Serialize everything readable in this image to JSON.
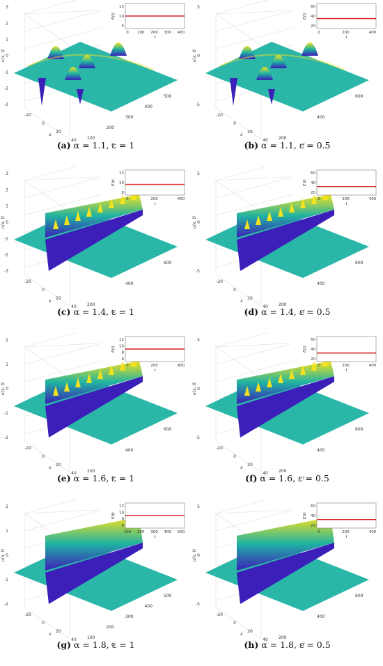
{
  "panels": [
    {
      "id": "a",
      "caption": {
        "label": "(a)",
        "text": "α = 1.1, ε = 1"
      },
      "surface_ticks": {
        "z": [
          "3",
          "2",
          "1",
          "0",
          "-1",
          "-2",
          "-3"
        ],
        "x": [
          "-20",
          "0",
          "20",
          "40"
        ],
        "t": [
          "100",
          "200",
          "300",
          "400",
          "500"
        ],
        "xlabel": "x",
        "tlabel": "t",
        "zlabel": "u(x, t)"
      },
      "inset": {
        "ylabel": "E(t)",
        "xlabel": "t",
        "yticks": [
          "15",
          "10",
          "5"
        ],
        "xticks": [
          "0",
          "100",
          "200",
          "300",
          "400"
        ],
        "E_level": 10,
        "ylim": [
          5,
          15
        ]
      },
      "style": "peaks",
      "zmax": 3
    },
    {
      "id": "b",
      "caption": {
        "label": "(b)",
        "text": "α = 1.1, ε = 0.5"
      },
      "surface_ticks": {
        "z": [
          "5",
          "0",
          "-5"
        ],
        "x": [
          "-20",
          "0",
          "20",
          "40"
        ],
        "t": [
          "200",
          "400",
          "600"
        ],
        "xlabel": "x",
        "tlabel": "t",
        "zlabel": "u(x, t)"
      },
      "inset": {
        "ylabel": "E(t)",
        "xlabel": "t",
        "yticks": [
          "60",
          "40",
          "20"
        ],
        "xticks": [
          "0",
          "200",
          "400"
        ],
        "E_level": 40,
        "ylim": [
          20,
          70
        ]
      },
      "style": "peaks",
      "zmax": 5
    },
    {
      "id": "c",
      "caption": {
        "label": "(c)",
        "text": "α = 1.4, ε = 1"
      },
      "surface_ticks": {
        "z": [
          "3",
          "2",
          "1",
          "0",
          "-1",
          "-2",
          "-3"
        ],
        "x": [
          "-20",
          "0",
          "20",
          "40"
        ],
        "t": [
          "200",
          "400",
          "600"
        ],
        "xlabel": "x",
        "tlabel": "t",
        "zlabel": "u(x, t)"
      },
      "inset": {
        "ylabel": "E(t)",
        "xlabel": "t",
        "yticks": [
          "12",
          "10",
          "8"
        ],
        "xticks": [
          "0",
          "200",
          "400"
        ],
        "E_level": 9,
        "ylim": [
          6,
          13
        ]
      },
      "style": "ridge",
      "zmax": 3
    },
    {
      "id": "d",
      "caption": {
        "label": "(d)",
        "text": "α = 1.4, ε = 0.5"
      },
      "surface_ticks": {
        "z": [
          "5",
          "0",
          "-5"
        ],
        "x": [
          "-20",
          "0",
          "20",
          "40"
        ],
        "t": [
          "200",
          "400",
          "600"
        ],
        "xlabel": "x",
        "tlabel": "t",
        "zlabel": "u(x, t)"
      },
      "inset": {
        "ylabel": "E(t)",
        "xlabel": "t",
        "yticks": [
          "60",
          "40",
          "20"
        ],
        "xticks": [
          "0",
          "200",
          "400"
        ],
        "E_level": 37,
        "ylim": [
          20,
          70
        ]
      },
      "style": "ridge",
      "zmax": 5
    },
    {
      "id": "e",
      "caption": {
        "label": "(e)",
        "text": "α = 1.6, ε = 1"
      },
      "surface_ticks": {
        "z": [
          "2",
          "1",
          "0",
          "-1",
          "-2"
        ],
        "x": [
          "-20",
          "0",
          "20",
          "40"
        ],
        "t": [
          "200",
          "400",
          "600"
        ],
        "xlabel": "x",
        "tlabel": "t",
        "zlabel": "u(x, t)"
      },
      "inset": {
        "ylabel": "E(t)",
        "xlabel": "t",
        "yticks": [
          "12",
          "10",
          "8",
          "6"
        ],
        "xticks": [
          "0",
          "200",
          "400"
        ],
        "E_level": 9,
        "ylim": [
          5,
          13
        ]
      },
      "style": "ridge",
      "zmax": 2
    },
    {
      "id": "f",
      "caption": {
        "label": "(f)",
        "text": "α = 1.6, ε = 0.5"
      },
      "surface_ticks": {
        "z": [
          "5",
          "0",
          "-5"
        ],
        "x": [
          "-20",
          "0",
          "20",
          "40"
        ],
        "t": [
          "200",
          "400",
          "600"
        ],
        "xlabel": "x",
        "tlabel": "t",
        "zlabel": "u(x, t)"
      },
      "inset": {
        "ylabel": "E(t)",
        "xlabel": "t",
        "yticks": [
          "60",
          "40",
          "20"
        ],
        "xticks": [
          "0",
          "200",
          "400"
        ],
        "E_level": 37,
        "ylim": [
          20,
          70
        ]
      },
      "style": "ridge",
      "zmax": 5
    },
    {
      "id": "g",
      "caption": {
        "label": "(g)",
        "text": "α = 1.8, ε = 1"
      },
      "surface_ticks": {
        "z": [
          "2",
          "1",
          "0",
          "-1",
          "-2"
        ],
        "x": [
          "-20",
          "0",
          "20",
          "40"
        ],
        "t": [
          "100",
          "200",
          "300",
          "400",
          "500"
        ],
        "xlabel": "x",
        "tlabel": "t",
        "zlabel": "u(x, t)"
      },
      "inset": {
        "ylabel": "E(t)",
        "xlabel": "t",
        "yticks": [
          "12",
          "10",
          "8",
          "6"
        ],
        "xticks": [
          "100",
          "200",
          "300",
          "400",
          "500"
        ],
        "E_level": 9,
        "ylim": [
          5,
          13
        ]
      },
      "style": "smooth",
      "zmax": 2
    },
    {
      "id": "h",
      "caption": {
        "label": "(h)",
        "text": "α = 1.8, ε = 0.5"
      },
      "surface_ticks": {
        "z": [
          "5",
          "0",
          "-5"
        ],
        "x": [
          "-20",
          "0",
          "20",
          "40"
        ],
        "t": [
          "200",
          "400",
          "600"
        ],
        "xlabel": "x",
        "tlabel": "t",
        "zlabel": "u(x, t)"
      },
      "inset": {
        "ylabel": "E(t)",
        "xlabel": "t",
        "yticks": [
          "60",
          "40",
          "20"
        ],
        "xticks": [
          "0",
          "200",
          "400"
        ],
        "E_level": 37,
        "ylim": [
          20,
          70
        ]
      },
      "style": "smooth",
      "zmax": 5
    }
  ],
  "colors": {
    "surface_low": "#3b1fb8",
    "surface_mid": "#1fb3a3",
    "surface_high": "#f4e21e",
    "energy_line": "#d42020",
    "axis": "#555555",
    "grid": "#dddddd"
  }
}
